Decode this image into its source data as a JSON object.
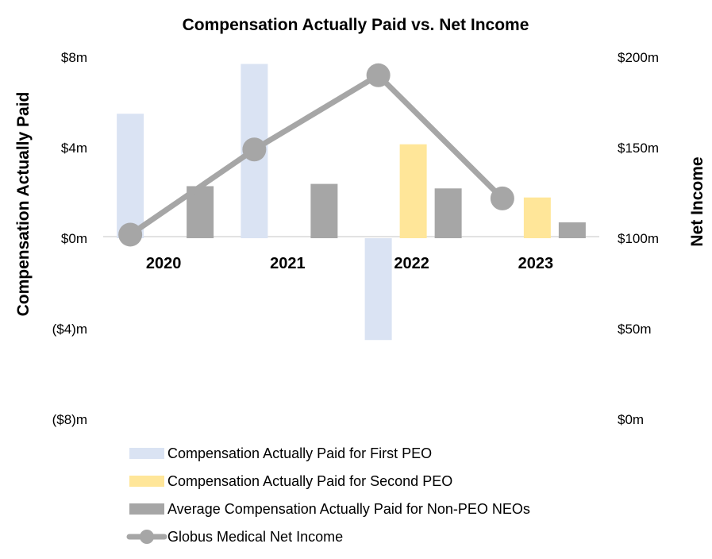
{
  "chart_data": {
    "type": "bar",
    "title": "Compensation Actually Paid vs. Net Income",
    "categories": [
      "2020",
      "2021",
      "2022",
      "2023"
    ],
    "ylabel": "Compensation Actually Paid",
    "y2label": "Net Income",
    "ylim": [
      -8,
      8
    ],
    "y2lim": [
      0,
      200
    ],
    "y_ticks": [
      {
        "value": 8,
        "label": "$8m"
      },
      {
        "value": 4,
        "label": "$4m"
      },
      {
        "value": 0,
        "label": "$0m"
      },
      {
        "value": -4,
        "label": "($4)m"
      },
      {
        "value": -8,
        "label": "($8)m"
      }
    ],
    "y2_ticks": [
      {
        "value": 200,
        "label": "$200m"
      },
      {
        "value": 150,
        "label": "$150m"
      },
      {
        "value": 100,
        "label": "$100m"
      },
      {
        "value": 50,
        "label": "$50m"
      },
      {
        "value": 0,
        "label": "$0m"
      }
    ],
    "series": [
      {
        "name": "Compensation Actually Paid for First PEO",
        "kind": "bar",
        "axis": "left",
        "color": "#dae3f3",
        "values": [
          5.5,
          7.7,
          -4.5,
          null
        ]
      },
      {
        "name": "Compensation Actually Paid for Second PEO",
        "kind": "bar",
        "axis": "left",
        "color": "#ffe699",
        "values": [
          null,
          null,
          4.15,
          1.8
        ]
      },
      {
        "name": "Average Compensation Actually Paid for Non-PEO NEOs",
        "kind": "bar",
        "axis": "left",
        "color": "#a6a6a6",
        "values": [
          2.3,
          2.4,
          2.2,
          0.7
        ]
      },
      {
        "name": "Globus Medical  Net Income",
        "kind": "line",
        "axis": "right",
        "color": "#a6a6a6",
        "values": [
          102,
          149,
          190,
          122
        ]
      }
    ],
    "legend_position": "bottom"
  }
}
